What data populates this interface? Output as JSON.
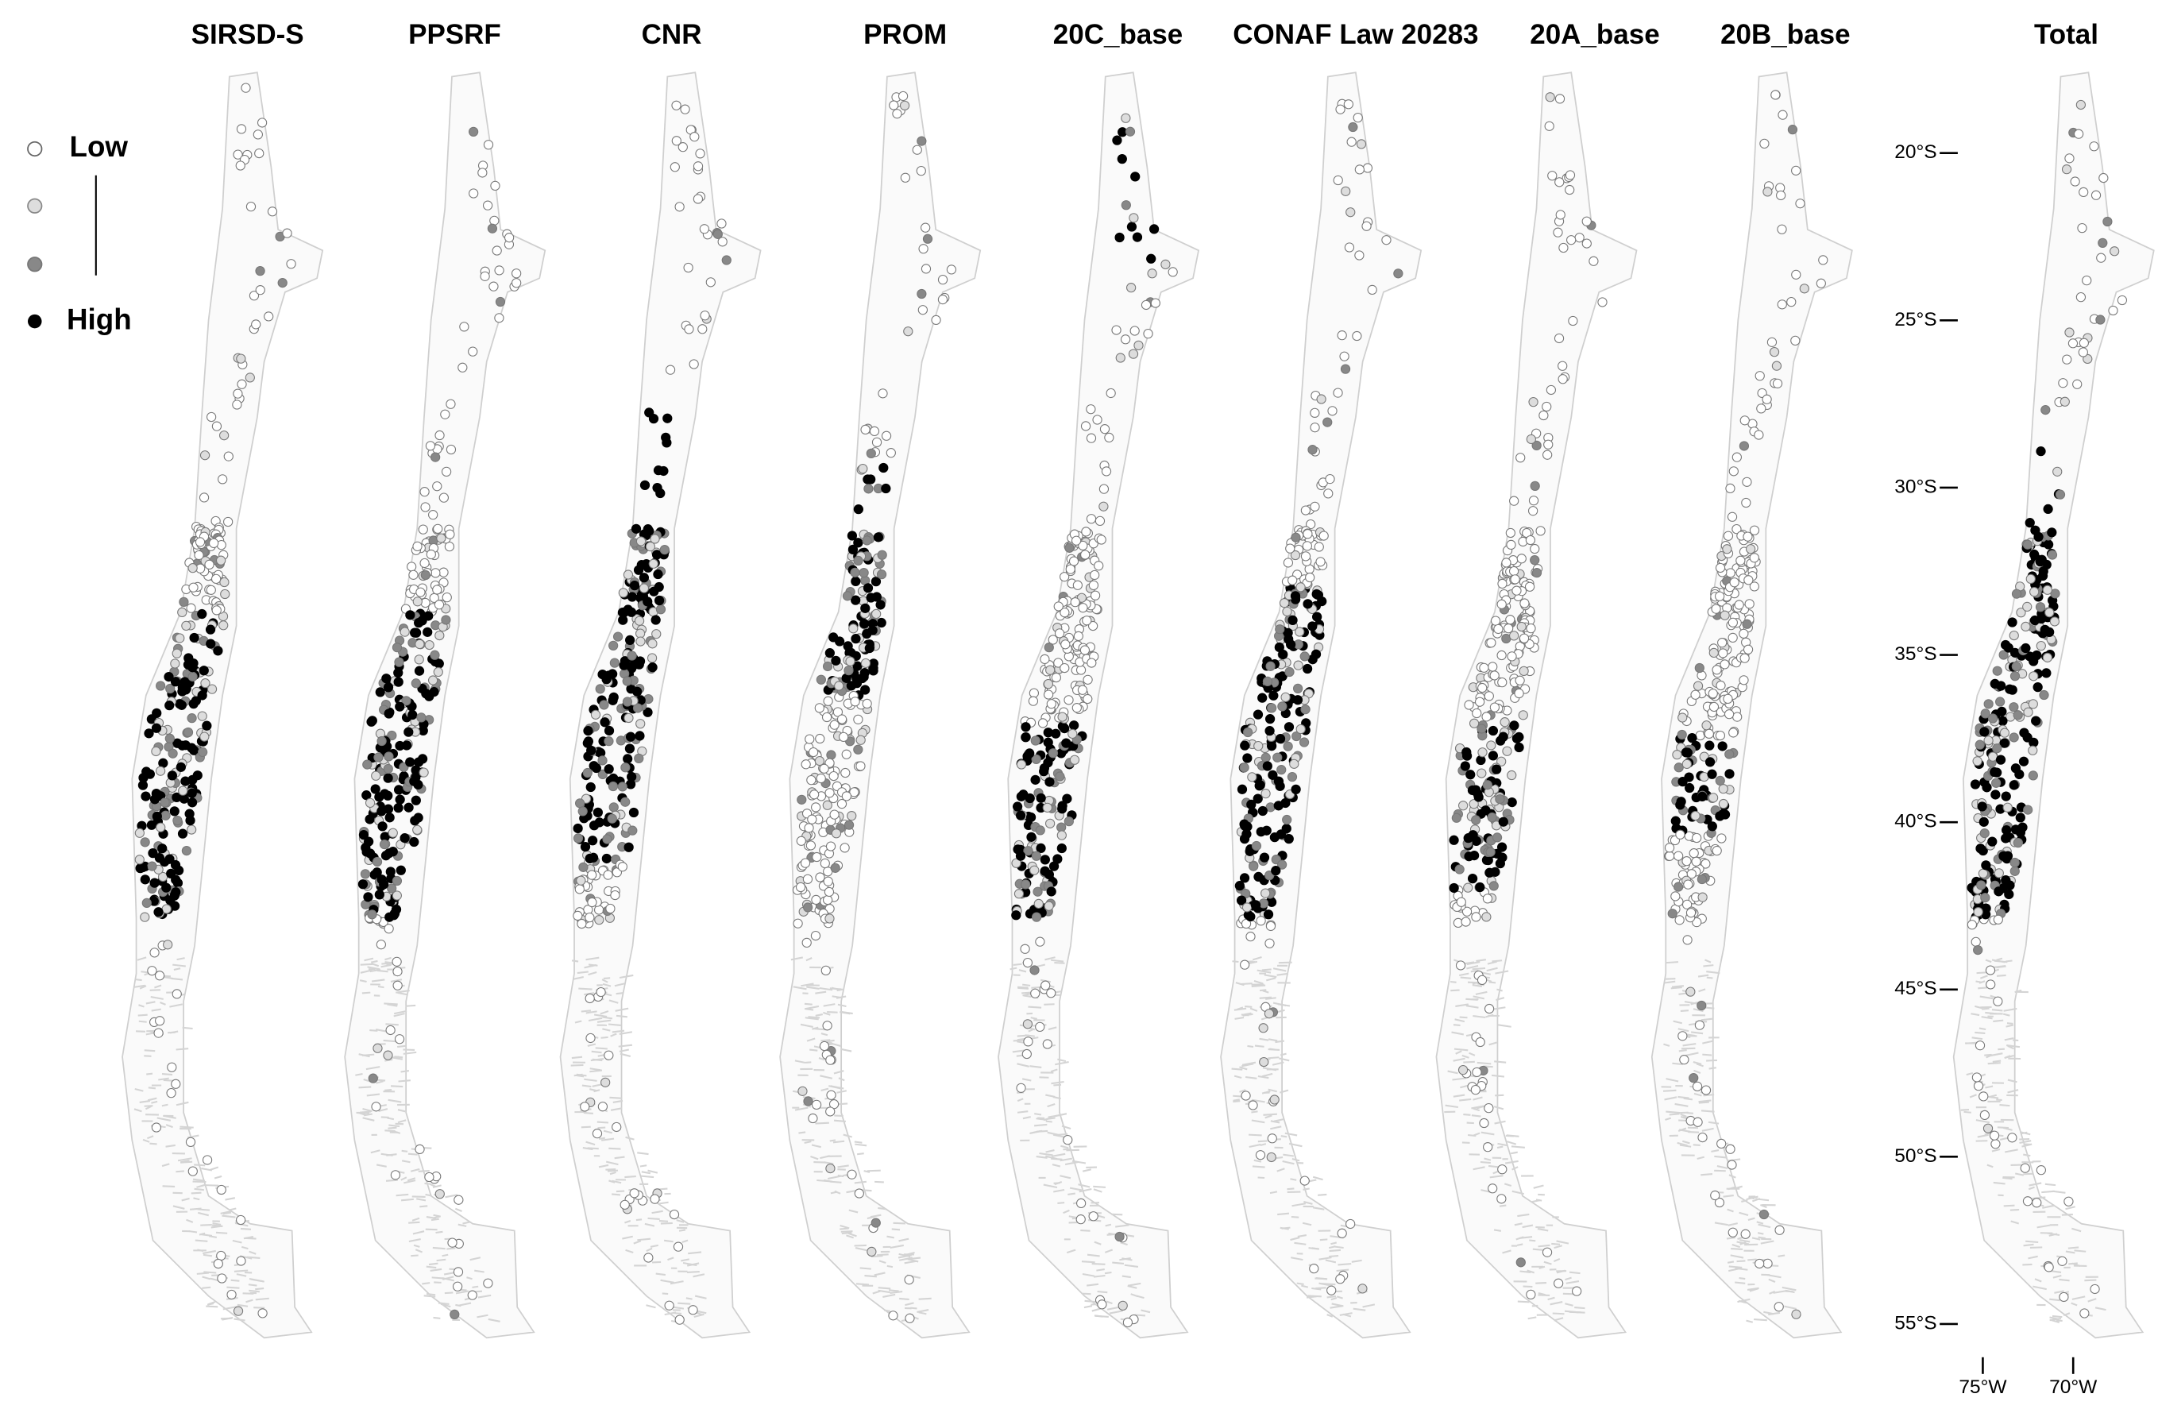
{
  "panels": [
    {
      "title": "SIRSD-S"
    },
    {
      "title": "PPSRF"
    },
    {
      "title": "CNR"
    },
    {
      "title": "PROM"
    },
    {
      "title": "20C_base"
    },
    {
      "title": "CONAF Law 20283"
    },
    {
      "title": "20A_base"
    },
    {
      "title": "20B_base"
    },
    {
      "title": "Total"
    }
  ],
  "legend": {
    "low": "Low",
    "high": "High"
  },
  "axes": {
    "lat_ticks": [
      {
        "value": -20,
        "label": "20°S"
      },
      {
        "value": -25,
        "label": "25°S"
      },
      {
        "value": -30,
        "label": "30°S"
      },
      {
        "value": -35,
        "label": "35°S"
      },
      {
        "value": -40,
        "label": "40°S"
      },
      {
        "value": -45,
        "label": "45°S"
      },
      {
        "value": -50,
        "label": "50°S"
      },
      {
        "value": -55,
        "label": "55°S"
      }
    ],
    "lon_ticks": [
      {
        "value": -75,
        "label": "75°W"
      },
      {
        "value": -70,
        "label": "70°W"
      }
    ]
  }
}
